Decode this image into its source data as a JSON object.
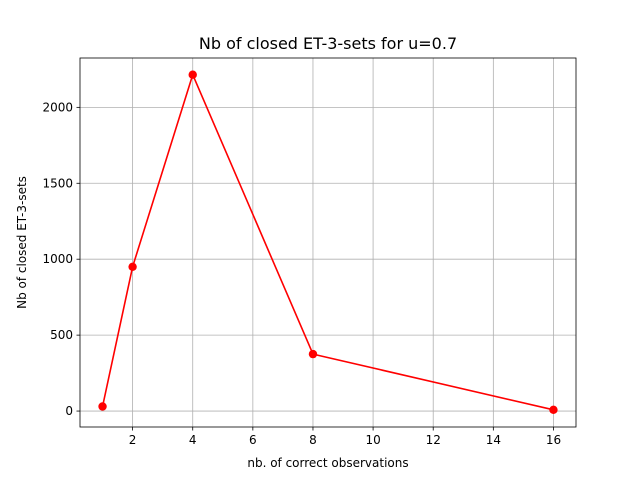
{
  "chart_data": {
    "type": "line",
    "title": "Nb of closed ET-3-sets for u=0.7",
    "xlabel": "nb. of correct observations",
    "ylabel": "Nb of closed ET-3-sets",
    "xlim": [
      0.25,
      16.75
    ],
    "ylim": [
      -105,
      2325
    ],
    "xticks": [
      2,
      4,
      6,
      8,
      10,
      12,
      14,
      16
    ],
    "yticks": [
      0,
      500,
      1000,
      1500,
      2000
    ],
    "grid": true,
    "series": [
      {
        "x": [
          1,
          2,
          4,
          8,
          16
        ],
        "values": [
          30,
          950,
          2215,
          375,
          8
        ],
        "color": "#ff0000",
        "marker": "circle"
      }
    ]
  }
}
